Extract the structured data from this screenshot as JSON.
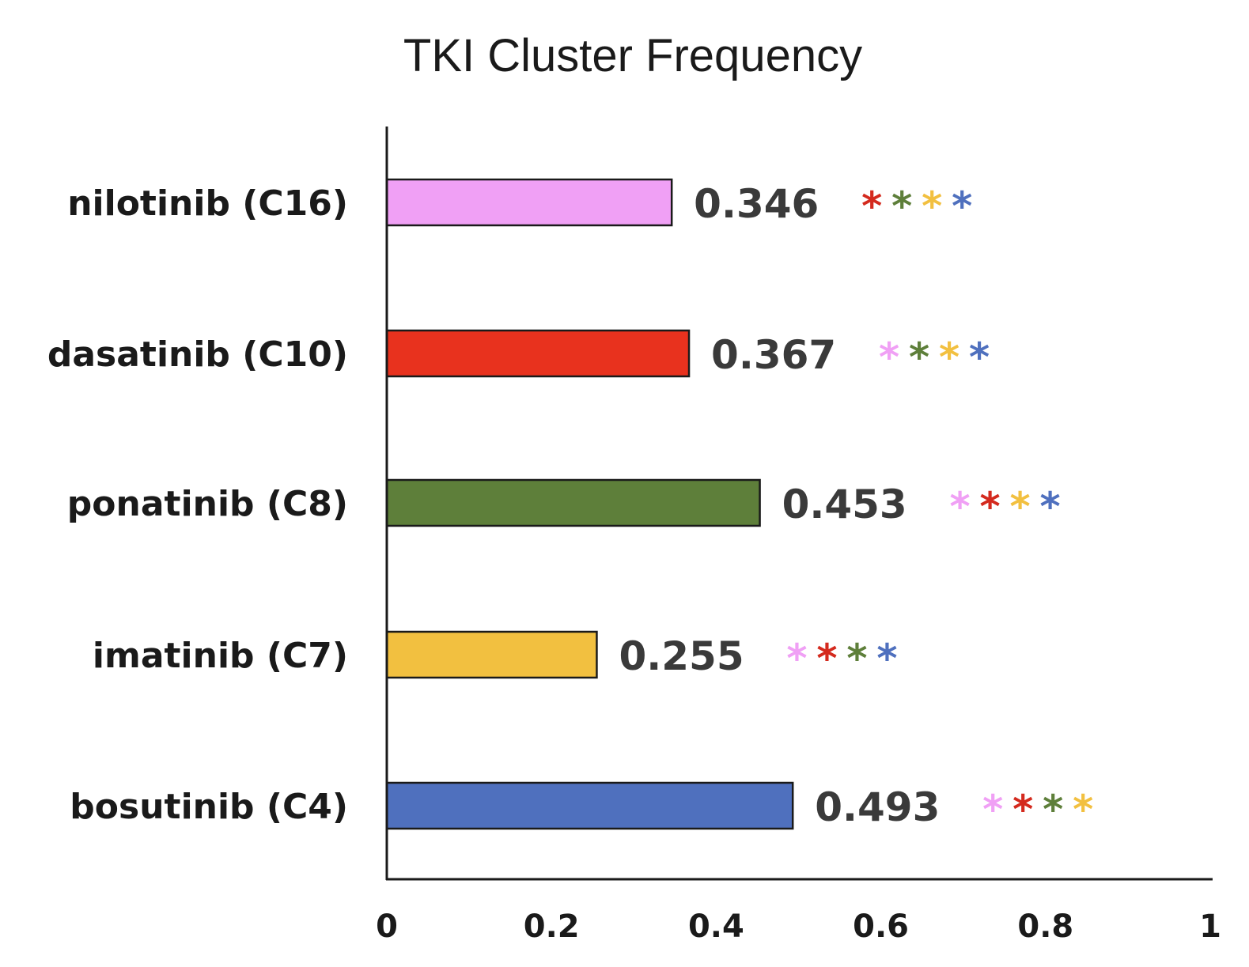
{
  "chart_data": {
    "type": "bar",
    "orientation": "horizontal",
    "title": "TKI Cluster Frequency",
    "xlabel": "",
    "ylabel": "",
    "xlim": [
      0,
      1
    ],
    "grid": false,
    "x_ticks": [
      "0",
      "0.2",
      "0.4",
      "0.6",
      "0.8",
      "1"
    ],
    "categories": [
      "nilotinib (C16)",
      "dasatinib (C10)",
      "ponatinib (C8)",
      "imatinib (C7)",
      "bosutinib (C4)"
    ],
    "values": [
      0.346,
      0.367,
      0.453,
      0.255,
      0.493
    ],
    "value_labels": [
      "0.346",
      "0.367",
      "0.453",
      "0.255",
      "0.493"
    ],
    "colors": [
      "#f0a0f5",
      "#e8321e",
      "#5e7f3a",
      "#f2c040",
      "#4f70be"
    ],
    "significance": [
      {
        "marks": [
          "*",
          "*",
          "*",
          "*"
        ],
        "colors": [
          "#d42a1e",
          "#5e7f3a",
          "#f2c040",
          "#4f70be"
        ]
      },
      {
        "marks": [
          "*",
          "*",
          "*",
          "*"
        ],
        "colors": [
          "#f0a0f5",
          "#5e7f3a",
          "#f2c040",
          "#4f70be"
        ]
      },
      {
        "marks": [
          "*",
          "*",
          "*",
          "*"
        ],
        "colors": [
          "#f0a0f5",
          "#d42a1e",
          "#f2c040",
          "#4f70be"
        ]
      },
      {
        "marks": [
          "*",
          "*",
          "*",
          "*"
        ],
        "colors": [
          "#f0a0f5",
          "#d42a1e",
          "#5e7f3a",
          "#4f70be"
        ]
      },
      {
        "marks": [
          "*",
          "*",
          "*",
          "*"
        ],
        "colors": [
          "#f0a0f5",
          "#d42a1e",
          "#5e7f3a",
          "#f2c040"
        ]
      }
    ]
  }
}
